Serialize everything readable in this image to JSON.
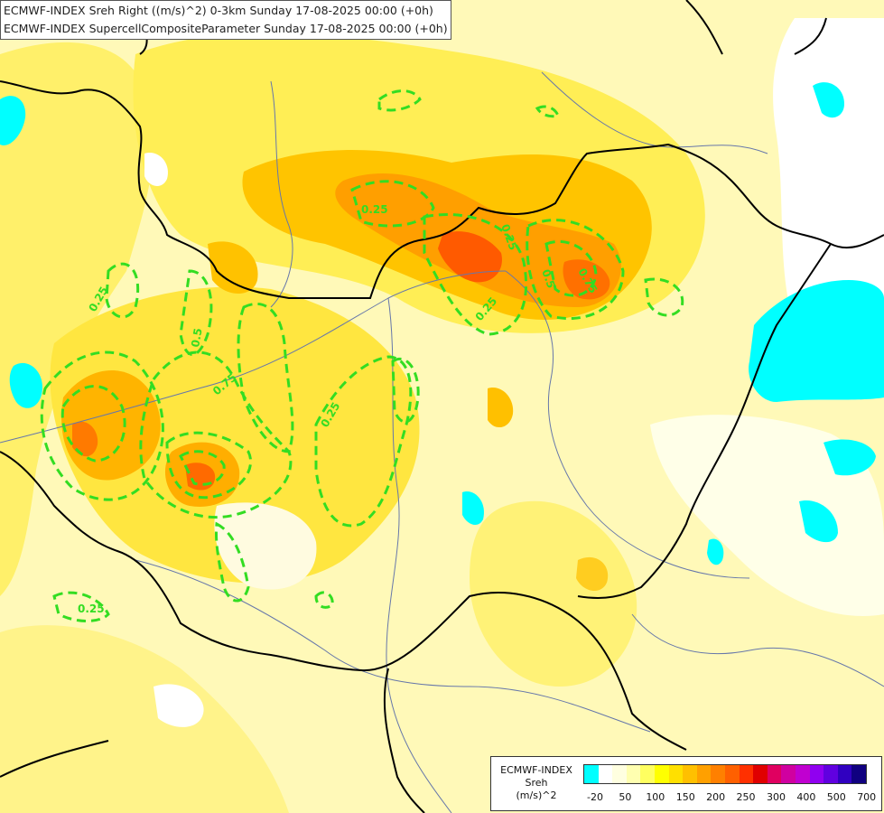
{
  "title": {
    "line1": "ECMWF-INDEX Sreh Right ((m/s)^2) 0-3km Sunday 17-08-2025 00:00 (+0h)",
    "line2": "ECMWF-INDEX SupercellCompositeParameter Sunday 17-08-2025 00:00 (+0h)"
  },
  "legend": {
    "line1": "ECMWF-INDEX",
    "line2": "Sreh",
    "line3": "(m/s)^2",
    "colors": [
      "#00ffff",
      "#ffffff",
      "#ffffe0",
      "#ffffb0",
      "#ffff60",
      "#ffff00",
      "#ffe000",
      "#ffc000",
      "#ffa000",
      "#ff8000",
      "#ff6000",
      "#ff3000",
      "#e00000",
      "#e00060",
      "#d000a0",
      "#c000d0",
      "#9000f0",
      "#6000e0",
      "#3000c0",
      "#100080"
    ],
    "tick_labels": [
      "-20",
      "50",
      "100",
      "150",
      "200",
      "250",
      "300",
      "400",
      "500",
      "700"
    ]
  },
  "contour_labels": [
    "0.25",
    "0.75",
    "0.5",
    "0.25",
    "0.25",
    "0.25",
    "0.25",
    "0.75",
    "0.5",
    "0.25"
  ],
  "colors": {
    "background": "#fffbd0",
    "contour": "#33dd22",
    "border": "#000000",
    "river": "#6677aa",
    "water": "#00ffff"
  }
}
